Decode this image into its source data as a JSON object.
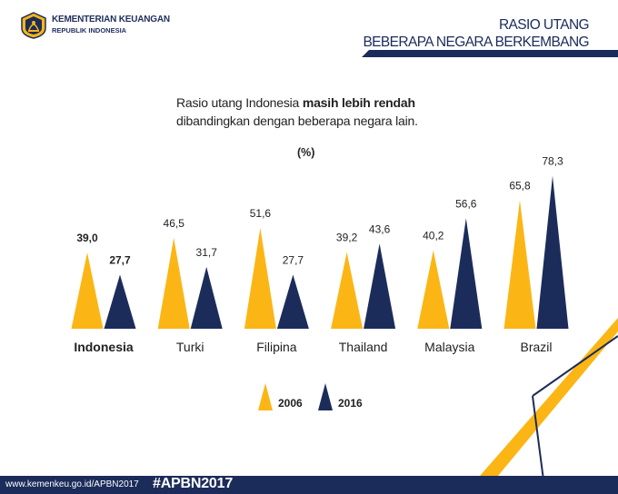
{
  "header": {
    "org_name": "KEMENTERIAN KEUANGAN",
    "org_sub": "REPUBLIK INDONESIA",
    "title_line1": "RASIO UTANG",
    "title_line2": "BEBERAPA NEGARA BERKEMBANG"
  },
  "subtitle": {
    "line1_prefix": "Rasio utang Indonesia ",
    "line1_bold": "masih lebih rendah",
    "line2": "dibandingkan dengan beberapa negara lain."
  },
  "colors": {
    "series_2006": "#fbb616",
    "series_2016": "#1c2c5a",
    "brand_navy": "#1c2c5a",
    "accent_gold": "#fbb616"
  },
  "chart_data": {
    "type": "bar",
    "unit_label": "(%)",
    "categories": [
      "Indonesia",
      "Turki",
      "Filipina",
      "Thailand",
      "Malaysia",
      "Brazil"
    ],
    "value_labels": [
      [
        "39,0",
        "27,7"
      ],
      [
        "46,5",
        "31,7"
      ],
      [
        "51,6",
        "27,7"
      ],
      [
        "39,2",
        "43,6"
      ],
      [
        "40,2",
        "56,6"
      ],
      [
        "65,8",
        "78,3"
      ]
    ],
    "highlight_category": "Indonesia",
    "series": [
      {
        "name": "2006",
        "values": [
          39.0,
          46.5,
          51.6,
          39.2,
          40.2,
          65.8
        ]
      },
      {
        "name": "2016",
        "values": [
          27.7,
          31.7,
          27.7,
          43.6,
          56.6,
          78.3
        ]
      }
    ],
    "legend_position": "bottom-center"
  },
  "footer": {
    "url": "www.kemenkeu.go.id/APBN2017",
    "hashtag": "#APBN2017"
  }
}
